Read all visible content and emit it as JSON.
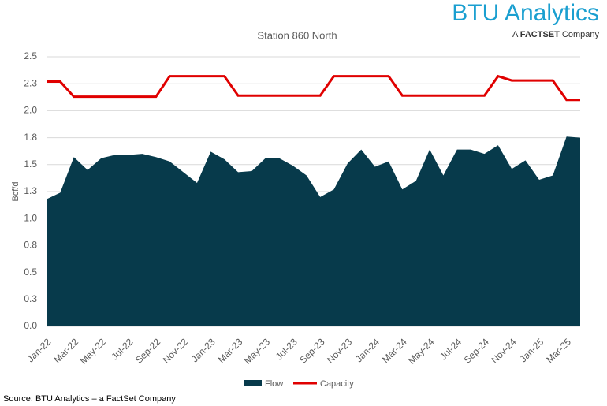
{
  "chart_data": {
    "type": "area-line",
    "title": "Station 860 North",
    "y_label": "Bcf/d",
    "logo": {
      "brand": "BTU Analytics",
      "tagline_prefix": "A",
      "tagline_brand": "FACTSET",
      "tagline_suffix": "Company"
    },
    "source": "Source: BTU Analytics – a FactSet Company",
    "categories": [
      "Jan-22",
      null,
      "Mar-22",
      null,
      "May-22",
      null,
      "Jul-22",
      null,
      "Sep-22",
      null,
      "Nov-22",
      null,
      "Jan-23",
      null,
      "Mar-23",
      null,
      "May-23",
      null,
      "Jul-23",
      null,
      "Sep-23",
      null,
      "Nov-23",
      null,
      "Jan-24",
      null,
      "Mar-24",
      null,
      "May-24",
      null,
      "Jul-24",
      null,
      "Sep-24",
      null,
      "Nov-24",
      null,
      "Jan-25",
      null,
      "Mar-25",
      null
    ],
    "series": [
      {
        "name": "Flow",
        "kind": "area",
        "color": "#073a4b",
        "values": [
          1.18,
          1.24,
          1.57,
          1.45,
          1.56,
          1.59,
          1.59,
          1.6,
          1.57,
          1.53,
          1.43,
          1.33,
          1.62,
          1.55,
          1.43,
          1.44,
          1.56,
          1.56,
          1.49,
          1.4,
          1.2,
          1.27,
          1.51,
          1.64,
          1.48,
          1.53,
          1.27,
          1.35,
          1.64,
          1.4,
          1.64,
          1.64,
          1.6,
          1.68,
          1.46,
          1.54,
          1.36,
          1.4,
          1.76,
          1.75
        ]
      },
      {
        "name": "Capacity",
        "kind": "line",
        "color": "#e00000",
        "values": [
          2.27,
          2.27,
          2.13,
          2.13,
          2.13,
          2.13,
          2.13,
          2.13,
          2.13,
          2.32,
          2.32,
          2.32,
          2.32,
          2.32,
          2.14,
          2.14,
          2.14,
          2.14,
          2.14,
          2.14,
          2.14,
          2.32,
          2.32,
          2.32,
          2.32,
          2.32,
          2.14,
          2.14,
          2.14,
          2.14,
          2.14,
          2.14,
          2.14,
          2.32,
          2.28,
          2.28,
          2.28,
          2.28,
          2.1,
          2.1
        ]
      }
    ],
    "ylim": [
      0,
      2.5
    ],
    "yticks": [
      {
        "value": 0,
        "label": "0.0"
      },
      {
        "value": 0.25,
        "label": "0.3"
      },
      {
        "value": 0.5,
        "label": "0.5"
      },
      {
        "value": 0.75,
        "label": "0.8"
      },
      {
        "value": 1,
        "label": "1.0"
      },
      {
        "value": 1.25,
        "label": "1.3"
      },
      {
        "value": 1.5,
        "label": "1.5"
      },
      {
        "value": 1.75,
        "label": "1.8"
      },
      {
        "value": 2,
        "label": "2.0"
      },
      {
        "value": 2.25,
        "label": "2.3"
      },
      {
        "value": 2.5,
        "label": "2.5"
      }
    ],
    "grid": true,
    "legend": "bottom"
  }
}
